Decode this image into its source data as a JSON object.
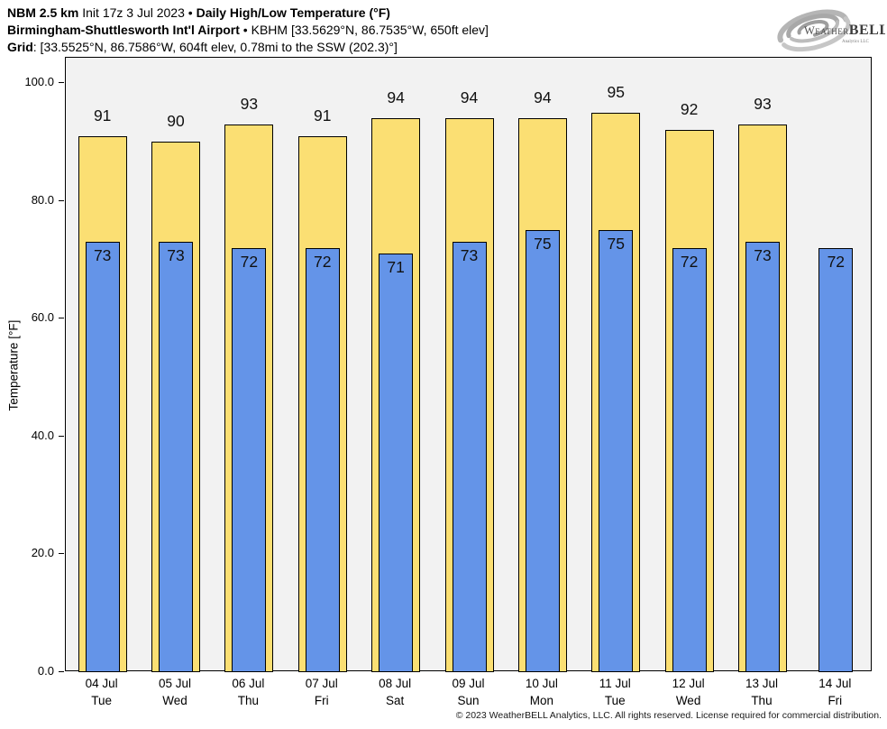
{
  "header": {
    "l1a": "NBM 2.5 km",
    "l1b": " Init 17z 3 Jul 2023 • ",
    "l1c": "Daily High/Low Temperature (°F)",
    "l2a": "Birmingham-Shuttlesworth Int'l Airport",
    "l2b": " • KBHM [33.5629°N, 86.7535°W, 650ft elev]",
    "l3a": "Grid",
    "l3b": ": [33.5525°N, 86.7586°W, 604ft elev, 0.78mi to the SSW (202.3)°]"
  },
  "logo": {
    "brand_weather": "Weather",
    "brand_bell": "BELL",
    "sub": "Analytics LLC"
  },
  "chart_data": {
    "type": "bar",
    "title": "NBM 2.5 km Init 17z 3 Jul 2023 • Daily High/Low Temperature (°F)",
    "subtitle": "Birmingham-Shuttlesworth Int'l Airport • KBHM [33.5629°N, 86.7535°W, 650ft elev]",
    "xlabel": "",
    "ylabel": "Temperature [°F]",
    "ylim": [
      0,
      100
    ],
    "ytick_values": [
      0,
      20,
      40,
      60,
      80,
      100
    ],
    "ytick_labels": [
      "0.0",
      "20.0",
      "40.0",
      "60.0",
      "80.0",
      "100.0"
    ],
    "grid": "off",
    "legend": "none",
    "plot_bg": "#f2f2f2",
    "bar_border": "#000000",
    "categories": [
      {
        "date": "04 Jul",
        "day": "Tue"
      },
      {
        "date": "05 Jul",
        "day": "Wed"
      },
      {
        "date": "06 Jul",
        "day": "Thu"
      },
      {
        "date": "07 Jul",
        "day": "Fri"
      },
      {
        "date": "08 Jul",
        "day": "Sat"
      },
      {
        "date": "09 Jul",
        "day": "Sun"
      },
      {
        "date": "10 Jul",
        "day": "Mon"
      },
      {
        "date": "11 Jul",
        "day": "Tue"
      },
      {
        "date": "12 Jul",
        "day": "Wed"
      },
      {
        "date": "13 Jul",
        "day": "Thu"
      },
      {
        "date": "14 Jul",
        "day": "Fri"
      }
    ],
    "series": [
      {
        "name": "Daily High",
        "color": "#FBDF73",
        "values": [
          91,
          90,
          93,
          91,
          94,
          94,
          94,
          95,
          92,
          93,
          null
        ]
      },
      {
        "name": "Daily Low",
        "color": "#6494E8",
        "values": [
          73,
          73,
          72,
          72,
          71,
          73,
          75,
          75,
          72,
          73,
          72
        ]
      }
    ]
  },
  "footer": {
    "copyright": "© 2023 WeatherBELL Analytics, LLC. All rights reserved. License required for commercial distribution."
  }
}
